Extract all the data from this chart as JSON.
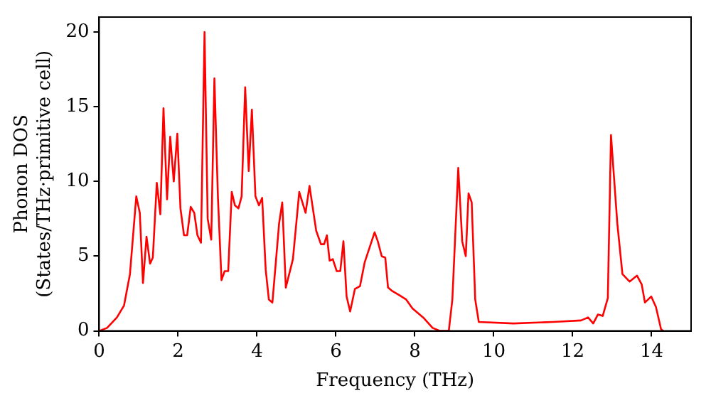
{
  "chart_data": {
    "type": "line",
    "xlabel": "Frequency (THz)",
    "ylabel": "Phonon DOS\n(States/THz·primitive cell)",
    "x": [
      0,
      0.2,
      0.45,
      0.63,
      0.78,
      0.94,
      1.03,
      1.11,
      1.2,
      1.29,
      1.36,
      1.46,
      1.55,
      1.63,
      1.72,
      1.8,
      1.89,
      1.98,
      2.06,
      2.15,
      2.23,
      2.32,
      2.41,
      2.49,
      2.58,
      2.67,
      2.75,
      2.84,
      2.92,
      3.01,
      3.1,
      3.18,
      3.27,
      3.36,
      3.44,
      3.53,
      3.61,
      3.7,
      3.79,
      3.87,
      3.96,
      4.05,
      4.13,
      4.22,
      4.3,
      4.39,
      4.48,
      4.56,
      4.64,
      4.73,
      4.91,
      5.07,
      5.23,
      5.33,
      5.5,
      5.62,
      5.7,
      5.77,
      5.84,
      5.92,
      6.02,
      6.11,
      6.19,
      6.27,
      6.36,
      6.48,
      6.61,
      6.73,
      6.88,
      6.98,
      7.06,
      7.16,
      7.25,
      7.32,
      7.41,
      7.6,
      7.78,
      7.94,
      8.21,
      8.45,
      8.64,
      8.86,
      8.95,
      9.1,
      9.2,
      9.29,
      9.36,
      9.44,
      9.53,
      9.62,
      10.5,
      11.5,
      12.21,
      12.39,
      12.52,
      12.64,
      12.76,
      12.89,
      12.97,
      13.13,
      13.26,
      13.44,
      13.63,
      13.75,
      13.83,
      13.99,
      14.11,
      14.24,
      14.3
    ],
    "series": [
      {
        "color": "#ff0000",
        "values": [
          0,
          0.2,
          0.9,
          1.7,
          3.8,
          9.0,
          7.9,
          3.2,
          6.3,
          4.5,
          4.9,
          9.9,
          7.8,
          14.9,
          8.8,
          13.0,
          10.0,
          13.2,
          8.2,
          6.4,
          6.4,
          8.3,
          7.9,
          6.4,
          5.9,
          20.0,
          7.5,
          6.1,
          16.9,
          8.9,
          3.4,
          4.0,
          4.0,
          9.3,
          8.4,
          8.2,
          9.0,
          16.3,
          10.7,
          14.8,
          9.0,
          8.4,
          8.9,
          4.1,
          2.1,
          1.9,
          4.7,
          7.2,
          8.6,
          2.9,
          4.8,
          9.3,
          7.9,
          9.7,
          6.7,
          5.8,
          5.8,
          6.4,
          4.7,
          4.8,
          4.0,
          4.0,
          6.0,
          2.3,
          1.3,
          2.8,
          3.0,
          4.6,
          5.8,
          6.6,
          6.0,
          5.0,
          4.9,
          2.9,
          2.7,
          2.4,
          2.1,
          1.5,
          0.9,
          0.2,
          0,
          0,
          2.1,
          10.9,
          6.0,
          5.0,
          9.2,
          8.6,
          2.1,
          0.6,
          0.5,
          0.6,
          0.7,
          0.9,
          0.5,
          1.1,
          1.0,
          2.2,
          13.1,
          7.2,
          3.8,
          3.3,
          3.7,
          3.1,
          1.9,
          2.3,
          1.6,
          0.1,
          0
        ]
      }
    ],
    "xlim": [
      0,
      15
    ],
    "xticks": [
      0,
      2,
      4,
      6,
      8,
      10,
      12,
      14
    ],
    "ylim": [
      0,
      21
    ],
    "yticks": [
      0,
      5,
      10,
      15,
      20
    ],
    "marker": "none",
    "line_style": "solid",
    "legend": false,
    "grid": false
  }
}
